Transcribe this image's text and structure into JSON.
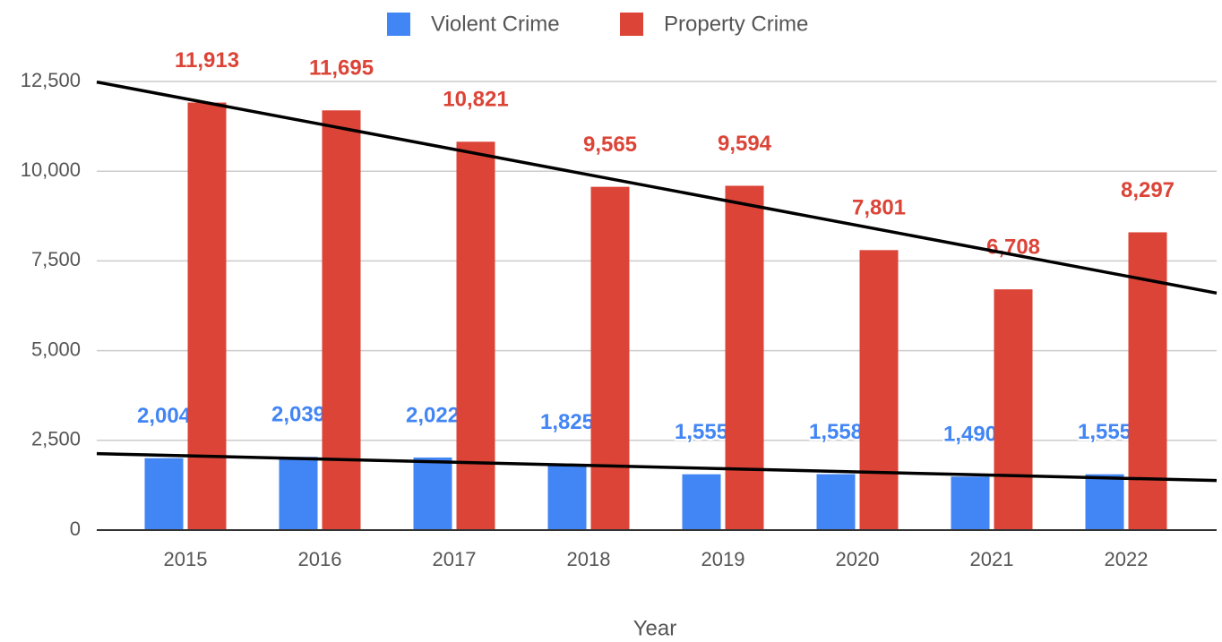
{
  "chart_data": {
    "type": "bar",
    "x_label": "Year",
    "categories": [
      "2015",
      "2016",
      "2017",
      "2018",
      "2019",
      "2020",
      "2021",
      "2022"
    ],
    "series": [
      {
        "name": "Violent Crime",
        "color": "#4285f4",
        "trendline": true,
        "values": [
          2004,
          2039,
          2022,
          1825,
          1555,
          1558,
          1490,
          1555
        ],
        "value_labels": [
          "2,004",
          "2,039",
          "2,022",
          "1,825",
          "1,555",
          "1,558",
          "1,490",
          "1,555"
        ]
      },
      {
        "name": "Property Crime",
        "color": "#db4437",
        "trendline": true,
        "values": [
          11913,
          11695,
          10821,
          9565,
          9594,
          7801,
          6708,
          8297
        ],
        "value_labels": [
          "11,913",
          "11,695",
          "10,821",
          "9,565",
          "9,594",
          "7,801",
          "6,708",
          "8,297"
        ]
      }
    ],
    "ylim": [
      0,
      12500
    ],
    "yticks": [
      0,
      {
        "value": 2500,
        "label": "2,500"
      },
      {
        "value": 5000,
        "label": "5,000"
      },
      {
        "value": 7500,
        "label": "7,500"
      },
      {
        "value": 10000,
        "label": "10,000"
      },
      {
        "value": 12500,
        "label": "12,500"
      }
    ],
    "grid": true,
    "legend": "top"
  }
}
